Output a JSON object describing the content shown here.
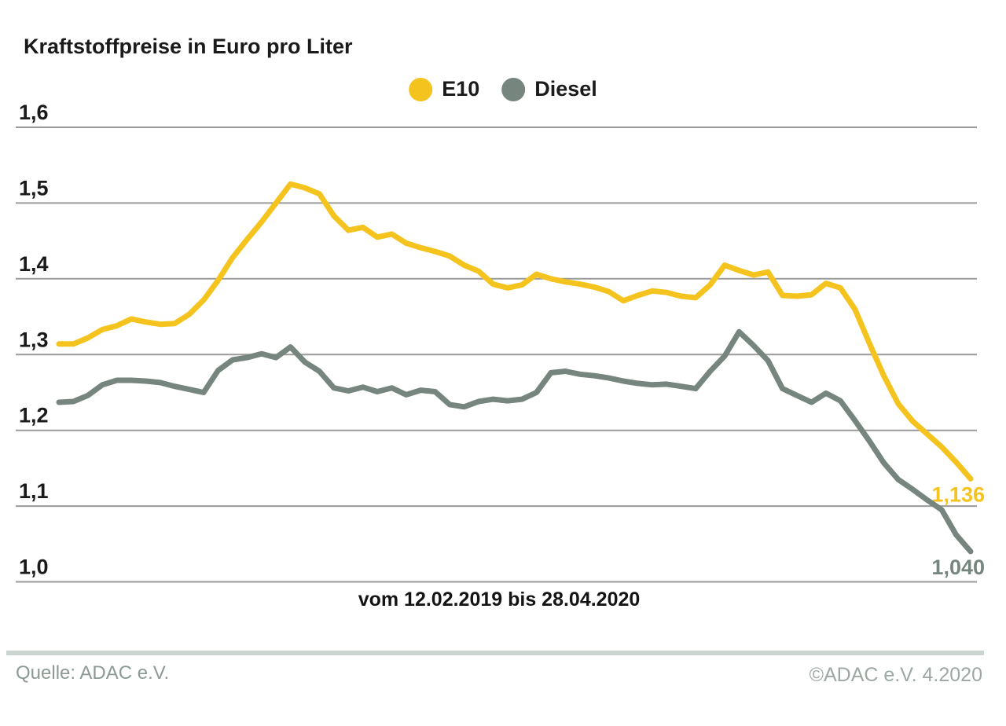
{
  "title": "Kraftstoffpreise in Euro pro Liter",
  "caption": "vom 12.02.2019 bis 28.04.2020",
  "footer": {
    "source_left": "Quelle: ADAC e.V.",
    "source_right": "©ADAC e.V. 4.2020"
  },
  "colors": {
    "e10": "#f5c31d",
    "diesel": "#76857e",
    "gridline": "#9a9a9a",
    "axis_text": "#1a1a1a",
    "divider": "#cbd5cf",
    "footer_text": "#8c9a93",
    "copyright_text": "#9da8a2"
  },
  "chart_data": {
    "type": "line",
    "title": "Kraftstoffpreise in Euro pro Liter",
    "x_caption": "vom 12.02.2019 bis 28.04.2020",
    "x_start": "12.02.2019",
    "x_end": "28.04.2020",
    "x_interval": "weekly",
    "ylabel": "Euro pro Liter",
    "ylim": [
      1.0,
      1.6
    ],
    "yticks": [
      "1,0",
      "1,1",
      "1,2",
      "1,3",
      "1,4",
      "1,5",
      "1,6"
    ],
    "grid": "horizontal",
    "legend_position": "top-center",
    "series": [
      {
        "name": "E10",
        "color": "#f5c31d",
        "end_label": "1,136",
        "end_value": 1.136,
        "values": [
          1.314,
          1.314,
          1.322,
          1.333,
          1.338,
          1.347,
          1.343,
          1.34,
          1.341,
          1.353,
          1.372,
          1.398,
          1.428,
          1.452,
          1.475,
          1.5,
          1.525,
          1.52,
          1.512,
          1.483,
          1.464,
          1.468,
          1.455,
          1.459,
          1.447,
          1.441,
          1.436,
          1.43,
          1.418,
          1.41,
          1.393,
          1.388,
          1.392,
          1.406,
          1.4,
          1.396,
          1.393,
          1.389,
          1.383,
          1.371,
          1.378,
          1.384,
          1.382,
          1.377,
          1.375,
          1.392,
          1.418,
          1.411,
          1.405,
          1.409,
          1.378,
          1.377,
          1.379,
          1.394,
          1.388,
          1.36,
          1.315,
          1.272,
          1.235,
          1.212,
          1.195,
          1.178,
          1.158,
          1.136
        ]
      },
      {
        "name": "Diesel",
        "color": "#76857e",
        "end_label": "1,040",
        "end_value": 1.04,
        "values": [
          1.237,
          1.238,
          1.246,
          1.26,
          1.266,
          1.266,
          1.265,
          1.263,
          1.258,
          1.254,
          1.25,
          1.279,
          1.293,
          1.296,
          1.301,
          1.296,
          1.31,
          1.29,
          1.278,
          1.256,
          1.252,
          1.257,
          1.251,
          1.256,
          1.247,
          1.253,
          1.251,
          1.234,
          1.231,
          1.238,
          1.241,
          1.239,
          1.241,
          1.25,
          1.276,
          1.278,
          1.274,
          1.272,
          1.269,
          1.265,
          1.262,
          1.26,
          1.261,
          1.258,
          1.255,
          1.278,
          1.298,
          1.33,
          1.312,
          1.292,
          1.255,
          1.246,
          1.237,
          1.249,
          1.239,
          1.213,
          1.186,
          1.157,
          1.135,
          1.122,
          1.108,
          1.095,
          1.062,
          1.04
        ]
      }
    ]
  }
}
